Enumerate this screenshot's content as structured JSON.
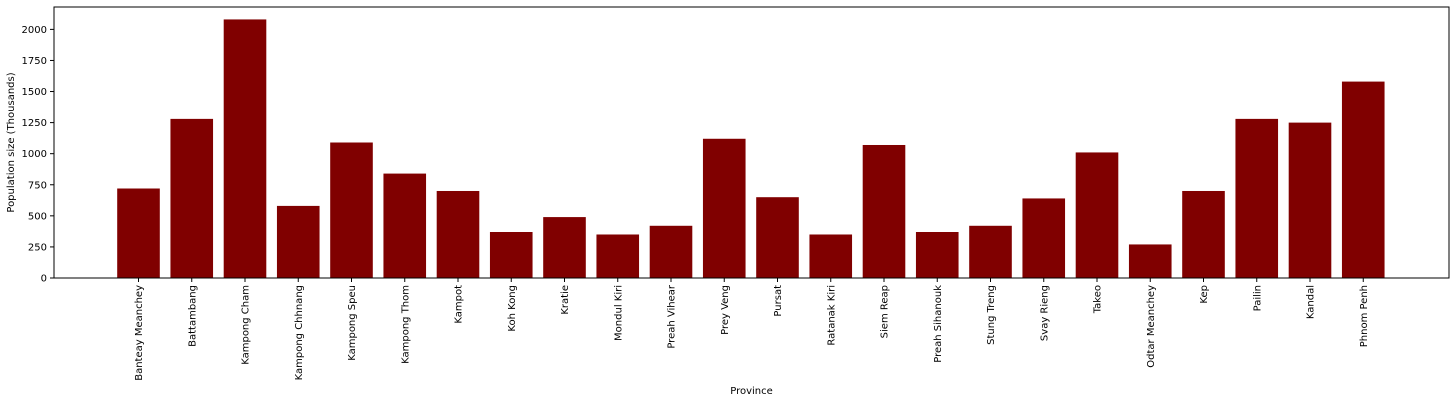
{
  "chart_data": {
    "type": "bar",
    "title": "",
    "xlabel": "Province",
    "ylabel": "Population size (Thousands)",
    "ylim": [
      0,
      2180
    ],
    "yticks": [
      0,
      250,
      500,
      750,
      1000,
      1250,
      1500,
      1750,
      2000
    ],
    "grid": false,
    "bar_color": "#800000",
    "categories": [
      "Banteay Meanchey",
      "Battambang",
      "Kampong Cham",
      "Kampong Chhnang",
      "Kampong Speu",
      "Kampong Thom",
      "Kampot",
      "Koh Kong",
      "Kratie",
      "Mondul Kiri",
      "Preah Vihear",
      "Prey Veng",
      "Pursat",
      "Ratanak Kiri",
      "Siem Reap",
      "Preah Sihanouk",
      "Stung Treng",
      "Svay Rieng",
      "Takeo",
      "Odtar Meanchey",
      "Kep",
      "Pailin",
      "Kandal",
      "Phnom Penh"
    ],
    "values": [
      720,
      1280,
      2080,
      580,
      1090,
      840,
      700,
      370,
      490,
      350,
      420,
      1120,
      650,
      350,
      1070,
      370,
      420,
      640,
      1010,
      270,
      700,
      1280,
      1250,
      1580
    ]
  }
}
